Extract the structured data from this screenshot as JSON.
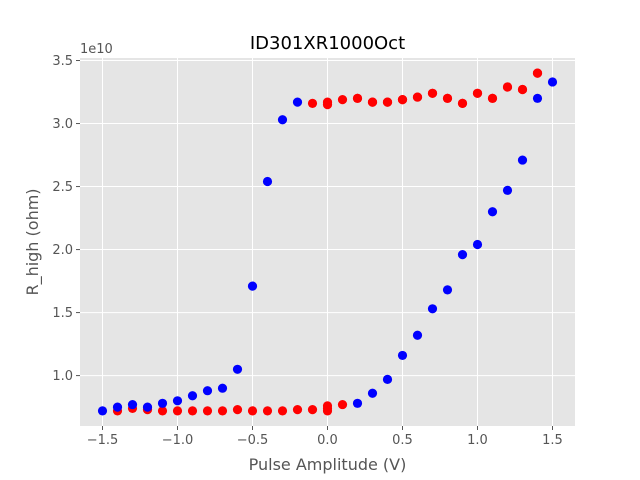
{
  "chart_data": {
    "type": "scatter",
    "title": "ID301XR1000Oct",
    "xlabel": "Pulse Amplitude (V)",
    "ylabel": "R_high (ohm)",
    "y_offset_label": "1e10",
    "xlim": [
      -1.65,
      1.65
    ],
    "ylim": [
      0.6,
      3.52
    ],
    "xticks": [
      -1.5,
      -1.0,
      -0.5,
      0.0,
      0.5,
      1.0,
      1.5
    ],
    "xtick_labels": [
      "−1.5",
      "−1.0",
      "−0.5",
      "0.0",
      "0.5",
      "1.0",
      "1.5"
    ],
    "yticks": [
      1.0,
      1.5,
      2.0,
      2.5,
      3.0,
      3.5
    ],
    "ytick_labels": [
      "1.0",
      "1.5",
      "2.0",
      "2.5",
      "3.0",
      "3.5"
    ],
    "grid": true,
    "background_color": "#e5e5e5",
    "grid_color": "#ffffff",
    "series": [
      {
        "color": "#ff0000",
        "x": [
          -1.4,
          -1.3,
          -1.2,
          -1.1,
          -1.0,
          -0.9,
          -0.8,
          -0.7,
          -0.6,
          -0.5,
          -0.4,
          -0.3,
          -0.2,
          -0.1,
          0.0,
          0.0,
          0.0,
          0.1,
          0.2,
          0.3,
          0.4,
          0.5,
          0.6,
          0.7,
          0.8,
          0.9,
          1.0,
          1.1,
          1.2,
          1.3,
          1.4,
          -0.1,
          0.0,
          0.0,
          0.1,
          0.2,
          0.3,
          0.4,
          0.5,
          0.6,
          0.7,
          0.8,
          0.9,
          1.0,
          1.1,
          1.2,
          1.3,
          1.4
        ],
        "y": [
          0.72,
          0.74,
          0.73,
          0.72,
          0.72,
          0.72,
          0.72,
          0.72,
          0.73,
          0.72,
          0.72,
          0.72,
          0.73,
          0.73,
          0.72,
          0.74,
          0.76,
          0.77,
          3.2,
          3.17,
          3.17,
          3.19,
          3.21,
          3.24,
          3.2,
          3.16,
          3.24,
          3.2,
          3.29,
          3.27,
          3.4,
          3.16,
          3.15,
          3.17,
          3.19,
          3.2,
          3.17,
          3.17,
          3.19,
          3.21,
          3.24,
          3.2,
          3.16,
          3.24,
          3.2,
          3.29,
          3.27,
          3.4
        ]
      },
      {
        "color": "#0000ff",
        "x": [
          -1.5,
          -1.4,
          -1.3,
          -1.2,
          -1.1,
          -1.0,
          -0.9,
          -0.8,
          -0.7,
          -0.6,
          -0.5,
          -0.4,
          -0.3,
          -0.2,
          0.2,
          0.3,
          0.4,
          0.5,
          0.6,
          0.7,
          0.8,
          0.9,
          1.0,
          1.1,
          1.2,
          1.3,
          1.4,
          1.5
        ],
        "y": [
          0.72,
          0.75,
          0.77,
          0.75,
          0.78,
          0.8,
          0.84,
          0.88,
          0.9,
          1.05,
          1.71,
          2.54,
          3.03,
          3.17,
          0.78,
          0.86,
          0.97,
          1.16,
          1.32,
          1.53,
          1.68,
          1.96,
          2.04,
          2.3,
          2.47,
          2.71,
          3.2,
          3.33
        ]
      }
    ]
  }
}
